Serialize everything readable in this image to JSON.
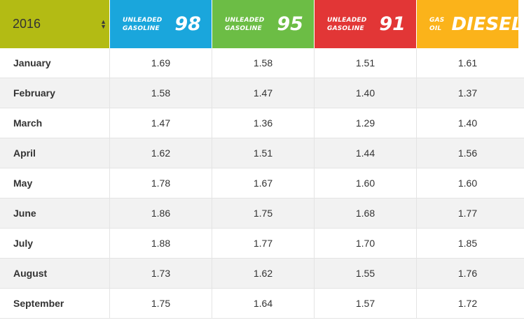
{
  "year_select": {
    "value": "2016"
  },
  "columns": [
    {
      "small1": "UNLEADED",
      "small2": "GASOLINE",
      "big": "98",
      "color": "#1aa6dc"
    },
    {
      "small1": "UNLEADED",
      "small2": "GASOLINE",
      "big": "95",
      "color": "#6cbd45"
    },
    {
      "small1": "UNLEADED",
      "small2": "GASOLINE",
      "big": "91",
      "color": "#e23636"
    },
    {
      "small1": "GAS",
      "small2": "OIL",
      "big": "DIESEL",
      "color": "#fbb31a"
    }
  ],
  "rows": [
    {
      "month": "January",
      "v98": "1.69",
      "v95": "1.58",
      "v91": "1.51",
      "diesel": "1.61"
    },
    {
      "month": "February",
      "v98": "1.58",
      "v95": "1.47",
      "v91": "1.40",
      "diesel": "1.37"
    },
    {
      "month": "March",
      "v98": "1.47",
      "v95": "1.36",
      "v91": "1.29",
      "diesel": "1.40"
    },
    {
      "month": "April",
      "v98": "1.62",
      "v95": "1.51",
      "v91": "1.44",
      "diesel": "1.56"
    },
    {
      "month": "May",
      "v98": "1.78",
      "v95": "1.67",
      "v91": "1.60",
      "diesel": "1.60"
    },
    {
      "month": "June",
      "v98": "1.86",
      "v95": "1.75",
      "v91": "1.68",
      "diesel": "1.77"
    },
    {
      "month": "July",
      "v98": "1.88",
      "v95": "1.77",
      "v91": "1.70",
      "diesel": "1.85"
    },
    {
      "month": "August",
      "v98": "1.73",
      "v95": "1.62",
      "v91": "1.55",
      "diesel": "1.76"
    },
    {
      "month": "September",
      "v98": "1.75",
      "v95": "1.64",
      "v91": "1.57",
      "diesel": "1.72"
    }
  ]
}
